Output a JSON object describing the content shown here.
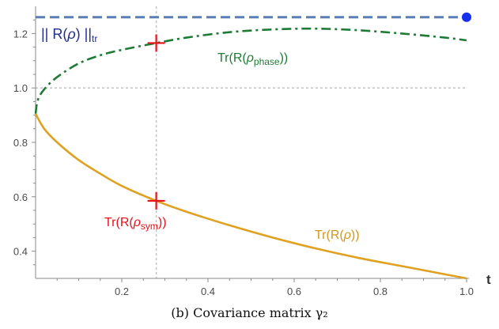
{
  "chart_data": {
    "type": "line",
    "xlabel": "t",
    "ylabel": "",
    "xlim": [
      0,
      1
    ],
    "ylim": [
      0.3,
      1.3
    ],
    "x_ticks": [
      0.2,
      0.4,
      0.6,
      0.8,
      1.0
    ],
    "x_tick_labels": [
      "0.2",
      "0.4",
      "0.6",
      "0.8",
      "1.0"
    ],
    "y_ticks": [
      0.4,
      0.6,
      0.8,
      1.0,
      1.2
    ],
    "y_tick_labels": [
      "0.4",
      "0.6",
      "0.8",
      "1.0",
      "1.2"
    ],
    "reference_lines": [
      {
        "orientation": "horizontal",
        "value": 1.0,
        "style": "dotted",
        "color": "#bdbdbd"
      },
      {
        "orientation": "vertical",
        "value": 0.28,
        "style": "dotted",
        "color": "#bdbdbd"
      }
    ],
    "series": [
      {
        "label_parts": [
          "Tr(R(",
          "ρ",
          "phase",
          "))"
        ],
        "color": "#1e7b36",
        "style": "dashdot",
        "x": [
          0,
          0.005,
          0.02,
          0.05,
          0.1,
          0.15,
          0.2,
          0.28,
          0.35,
          0.45,
          0.55,
          0.65,
          0.75,
          0.85,
          0.95,
          1.0
        ],
        "y": [
          0.905,
          0.955,
          0.995,
          1.04,
          1.09,
          1.12,
          1.14,
          1.165,
          1.185,
          1.205,
          1.215,
          1.218,
          1.212,
          1.2,
          1.185,
          1.175
        ]
      },
      {
        "label_parts": [
          "Tr(R(",
          "ρ",
          "",
          "))"
        ],
        "color": "#e0a020",
        "style": "solid",
        "x": [
          0,
          0.02,
          0.05,
          0.1,
          0.15,
          0.2,
          0.28,
          0.35,
          0.45,
          0.55,
          0.65,
          0.75,
          0.85,
          0.95,
          1.0
        ],
        "y": [
          0.905,
          0.85,
          0.8,
          0.735,
          0.685,
          0.64,
          0.585,
          0.545,
          0.495,
          0.45,
          0.41,
          0.375,
          0.345,
          0.315,
          0.3
        ]
      },
      {
        "label_parts": [
          "|| R(",
          "ρ",
          ") ||",
          "tr"
        ],
        "color": "#5b7fb5",
        "style": "dashed",
        "x": [
          0,
          1.0
        ],
        "y": [
          1.26,
          1.26
        ]
      }
    ],
    "markers": [
      {
        "label_parts": [
          "Tr(R(",
          "ρ",
          "sym",
          "))"
        ],
        "x": 0.28,
        "y": 0.585,
        "shape": "cross",
        "color": "#e8101a"
      },
      {
        "x": 0.28,
        "y": 1.165,
        "shape": "cross",
        "color": "#e8101a"
      },
      {
        "x": 1.0,
        "y": 1.26,
        "shape": "dot",
        "color": "#1530ee"
      }
    ]
  },
  "caption": "(b) Covariance matrix γ₂"
}
